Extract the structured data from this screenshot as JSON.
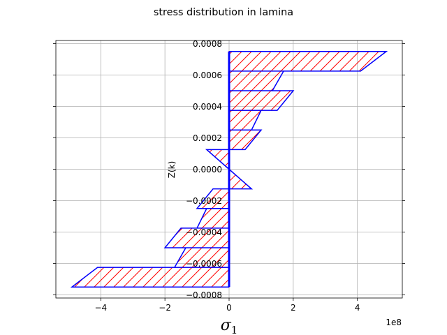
{
  "chart_data": {
    "type": "area",
    "title": "stress distribution in lamina",
    "xlabel": "σ1",
    "xlabel_main": "σ",
    "xlabel_sub": "1",
    "ylabel": "Z(k)",
    "x_offset_label": "1e8",
    "x_tick_values": [
      -4,
      -2,
      0,
      2,
      4
    ],
    "x_tick_labels": [
      "−4",
      "−2",
      "0",
      "2",
      "4"
    ],
    "y_tick_values": [
      -0.0008,
      -0.0006,
      -0.0004,
      -0.0002,
      0.0,
      0.0002,
      0.0004,
      0.0006,
      0.0008
    ],
    "y_tick_labels": [
      "−0.0008",
      "−0.0006",
      "−0.0004",
      "−0.0002",
      "0.0000",
      "0.0002",
      "0.0004",
      "0.0006",
      "0.0008"
    ],
    "xlim": [
      -5.4,
      5.4
    ],
    "ylim": [
      -0.00082,
      0.00082
    ],
    "grid": true,
    "hatch": "//",
    "fill_edge_color": "#ff0000",
    "line_color": "#0000ff",
    "plies": [
      {
        "z0": 0.000625,
        "z1": 0.00075,
        "s0": 4.1,
        "s1": 4.9
      },
      {
        "z0": 0.0005,
        "z1": 0.000625,
        "s0": 1.35,
        "s1": 1.7
      },
      {
        "z0": 0.000375,
        "z1": 0.0005,
        "s0": 1.5,
        "s1": 2.0
      },
      {
        "z0": 0.00025,
        "z1": 0.000375,
        "s0": 0.7,
        "s1": 1.0
      },
      {
        "z0": 0.000125,
        "z1": 0.00025,
        "s0": 0.5,
        "s1": 1.0
      },
      {
        "z0": 0.0,
        "z1": 0.000125,
        "s0": 0.0,
        "s1": -0.7
      },
      {
        "z0": -0.000125,
        "z1": 0.0,
        "s0": 0.7,
        "s1": 0.0
      },
      {
        "z0": -0.00025,
        "z1": -0.000125,
        "s0": -1.0,
        "s1": -0.5
      },
      {
        "z0": -0.000375,
        "z1": -0.00025,
        "s0": -1.0,
        "s1": -0.7
      },
      {
        "z0": -0.0005,
        "z1": -0.000375,
        "s0": -2.0,
        "s1": -1.5
      },
      {
        "z0": -0.000625,
        "z1": -0.0005,
        "s0": -1.7,
        "s1": -1.35
      },
      {
        "z0": -0.00075,
        "z1": -0.000625,
        "s0": -4.9,
        "s1": -4.1
      }
    ]
  }
}
